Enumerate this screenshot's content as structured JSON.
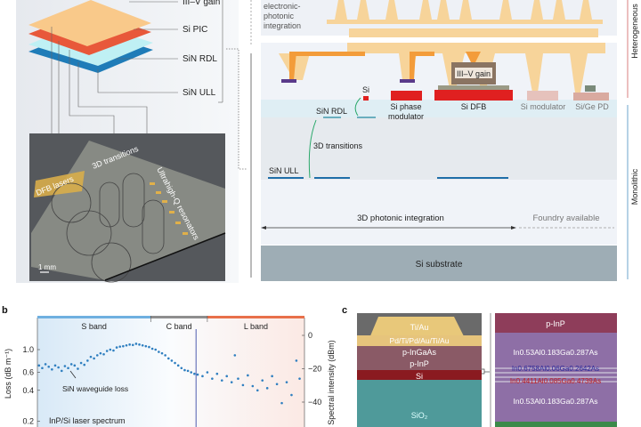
{
  "panel_a": {
    "layers": [
      "III–V gain",
      "Si PIC",
      "SiN RDL",
      "SiN ULL"
    ],
    "photo_labels": {
      "dfb": "DFB lasers",
      "transitions": "3D transitions",
      "resonators": "Ultrahigh-Q resonators",
      "scale": "1 mm"
    },
    "colors": {
      "gain": "#f9c98a",
      "si_pic": "#e8583a",
      "sin_rdl": "#bff0f4",
      "sin_ull": "#1f7cb8"
    }
  },
  "diagram": {
    "epi_label": "electronic-photonic integration",
    "epi_lines": [
      "electronic-",
      "photonic",
      "integration"
    ],
    "si": "Si",
    "sin_rdl": "SiN RDL",
    "phase_mod": [
      "Si phase",
      "modulator"
    ],
    "gain": "III–V gain",
    "dfb": "Si DFB",
    "modulator": "Si modulator",
    "pd": "Si/Ge PD",
    "transitions": "3D transitions",
    "sin_ull": "SiN ULL",
    "photonic_3d": "3D photonic integration",
    "foundry": "Foundry available",
    "substrate": "Si substrate",
    "heterogeneous": "Heterogeneous",
    "monolithic": "Monolithic"
  },
  "panel_b_label": "b",
  "panel_c_label": "c",
  "chart_data": {
    "type": "scatter",
    "bands": [
      {
        "name": "S band",
        "range": [
          1460,
          1530
        ],
        "color": "#6fb0e0"
      },
      {
        "name": "C band",
        "range": [
          1530,
          1565
        ],
        "color": "#8e8e8e"
      },
      {
        "name": "L band",
        "range": [
          1565,
          1625
        ],
        "color": "#e8704a"
      }
    ],
    "xlim": [
      1460,
      1625
    ],
    "ylabel": "Loss (dB m⁻¹)",
    "ylabel_right": "Spectral intensity (dBm)",
    "yscale": "log",
    "yticks": [
      "1.0",
      "0.6",
      "0.4",
      "0.2"
    ],
    "ytick_values": [
      1.0,
      0.6,
      0.4,
      0.2
    ],
    "yticks_right": [
      "0",
      "−20",
      "−40"
    ],
    "yticks_right_values": [
      0,
      -20,
      -40
    ],
    "ylim_right": [
      -55,
      9
    ],
    "annotations": {
      "loss": "SiN waveguide loss",
      "laser": "InP/Si laser spectrum"
    },
    "laser_peak_x": 1558,
    "series": [
      {
        "name": "SiN waveguide loss",
        "color": "#2f7fc0",
        "points": [
          [
            1461,
            0.7
          ],
          [
            1463,
            0.66
          ],
          [
            1465,
            0.72
          ],
          [
            1467,
            0.68
          ],
          [
            1469,
            0.64
          ],
          [
            1471,
            0.7
          ],
          [
            1473,
            0.67
          ],
          [
            1475,
            0.62
          ],
          [
            1477,
            0.69
          ],
          [
            1479,
            0.66
          ],
          [
            1481,
            0.72
          ],
          [
            1483,
            0.7
          ],
          [
            1485,
            0.65
          ],
          [
            1487,
            0.74
          ],
          [
            1489,
            0.71
          ],
          [
            1491,
            0.78
          ],
          [
            1493,
            0.85
          ],
          [
            1495,
            0.82
          ],
          [
            1497,
            0.88
          ],
          [
            1499,
            0.92
          ],
          [
            1501,
            0.9
          ],
          [
            1503,
            0.97
          ],
          [
            1505,
            1.0
          ],
          [
            1507,
            0.98
          ],
          [
            1509,
            1.05
          ],
          [
            1511,
            1.07
          ],
          [
            1513,
            1.08
          ],
          [
            1515,
            1.1
          ],
          [
            1517,
            1.12
          ],
          [
            1519,
            1.11
          ],
          [
            1521,
            1.14
          ],
          [
            1523,
            1.12
          ],
          [
            1525,
            1.1
          ],
          [
            1527,
            1.08
          ],
          [
            1529,
            1.06
          ],
          [
            1531,
            1.02
          ],
          [
            1533,
            1.0
          ],
          [
            1535,
            0.95
          ],
          [
            1537,
            0.92
          ],
          [
            1539,
            0.88
          ],
          [
            1541,
            0.82
          ],
          [
            1543,
            0.78
          ],
          [
            1545,
            0.74
          ],
          [
            1547,
            0.7
          ],
          [
            1549,
            0.66
          ],
          [
            1551,
            0.63
          ],
          [
            1553,
            0.62
          ],
          [
            1555,
            0.6
          ],
          [
            1557,
            0.58
          ],
          [
            1559,
            0.57
          ],
          [
            1562,
            0.55
          ],
          [
            1565,
            0.6
          ],
          [
            1568,
            0.52
          ],
          [
            1571,
            0.58
          ],
          [
            1574,
            0.5
          ],
          [
            1577,
            0.55
          ],
          [
            1580,
            0.48
          ],
          [
            1582,
            0.88
          ],
          [
            1584,
            0.52
          ],
          [
            1587,
            0.45
          ],
          [
            1590,
            0.56
          ],
          [
            1593,
            0.44
          ],
          [
            1596,
            0.4
          ],
          [
            1599,
            0.5
          ],
          [
            1602,
            0.42
          ],
          [
            1605,
            0.55
          ],
          [
            1608,
            0.46
          ],
          [
            1611,
            0.3
          ],
          [
            1614,
            0.48
          ],
          [
            1617,
            0.36
          ],
          [
            1620,
            0.78
          ],
          [
            1622,
            0.52
          ]
        ]
      }
    ]
  },
  "panel_c": {
    "left": {
      "tiau": "Ti/Au",
      "contact": "Pd/Ti/Pd/Au/Ti/Au",
      "pingaas": "p-InGaAs",
      "pinp": "p-InP",
      "si": "Si",
      "sio2": "SiO₂"
    },
    "right": {
      "pinp": "p-InP",
      "barrier_top": "In0.53Al0.183Ga0.287As",
      "well1": "In0.6758Al0.06Ga0.2642As",
      "well2": "In0.4411Al0.085Ga0.4739As",
      "barrier_bottom": "In0.53Al0.183Ga0.287As"
    }
  }
}
